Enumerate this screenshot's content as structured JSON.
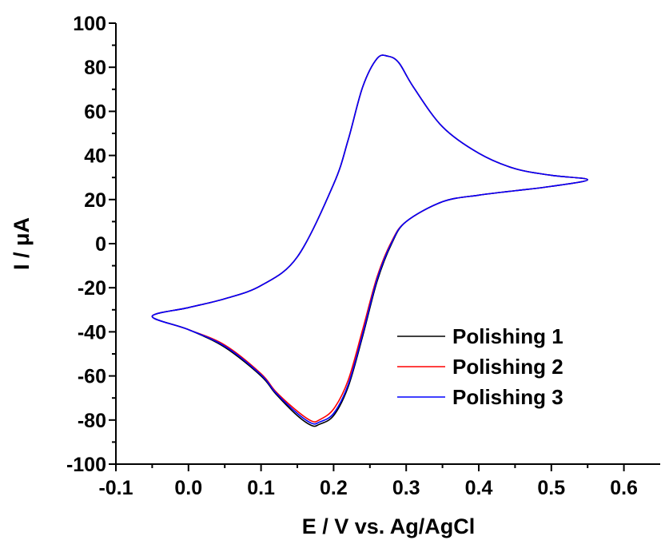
{
  "chart_data": {
    "type": "line",
    "xlabel": "E / V vs. Ag/AgCl",
    "ylabel_prefix": "I / ",
    "ylabel_unit": "μA",
    "xlim": [
      -0.1,
      0.65
    ],
    "ylim": [
      -100,
      100
    ],
    "x_ticks": [
      "-0.1",
      "0.0",
      "0.1",
      "0.2",
      "0.3",
      "0.4",
      "0.5",
      "0.6"
    ],
    "y_ticks": [
      "-100",
      "-80",
      "-60",
      "-40",
      "-20",
      "0",
      "20",
      "40",
      "60",
      "80",
      "100"
    ],
    "grid": false,
    "legend_position": "bottom-right",
    "series": [
      {
        "name": "Polishing 1",
        "color": "#000000",
        "x": [
          -0.05,
          0.0,
          0.05,
          0.1,
          0.15,
          0.2,
          0.22,
          0.24,
          0.26,
          0.275,
          0.29,
          0.31,
          0.35,
          0.4,
          0.45,
          0.5,
          0.55,
          0.5,
          0.45,
          0.4,
          0.35,
          0.3,
          0.28,
          0.26,
          0.24,
          0.22,
          0.2,
          0.18,
          0.17,
          0.15,
          0.12,
          0.1,
          0.05,
          0.0,
          -0.05
        ],
        "y": [
          -33,
          -29,
          -25,
          -19,
          -6,
          27,
          47,
          71,
          84,
          85,
          82,
          71,
          53,
          41,
          34,
          31,
          29,
          26,
          24,
          22,
          19,
          10,
          0,
          -17,
          -42,
          -65,
          -78,
          -82,
          -82.5,
          -78,
          -68,
          -60,
          -47,
          -39,
          -33
        ]
      },
      {
        "name": "Polishing 2",
        "color": "#ff0000",
        "x": [
          -0.05,
          0.0,
          0.05,
          0.1,
          0.15,
          0.2,
          0.22,
          0.24,
          0.26,
          0.275,
          0.29,
          0.31,
          0.35,
          0.4,
          0.45,
          0.5,
          0.55,
          0.5,
          0.45,
          0.4,
          0.35,
          0.3,
          0.28,
          0.26,
          0.24,
          0.22,
          0.2,
          0.18,
          0.17,
          0.15,
          0.12,
          0.1,
          0.05,
          0.0,
          -0.05
        ],
        "y": [
          -33,
          -29,
          -25,
          -19,
          -6,
          27,
          47,
          71,
          84,
          85,
          82,
          71,
          53,
          41,
          34,
          31,
          29,
          26,
          24,
          22,
          19,
          10,
          1,
          -15,
          -39,
          -62,
          -75,
          -80,
          -80.5,
          -76,
          -67,
          -59,
          -46,
          -39,
          -33
        ]
      },
      {
        "name": "Polishing 3",
        "color": "#0000ff",
        "x": [
          -0.05,
          0.0,
          0.05,
          0.1,
          0.15,
          0.2,
          0.22,
          0.24,
          0.26,
          0.275,
          0.29,
          0.31,
          0.35,
          0.4,
          0.45,
          0.5,
          0.55,
          0.5,
          0.45,
          0.4,
          0.35,
          0.3,
          0.28,
          0.26,
          0.24,
          0.22,
          0.2,
          0.18,
          0.17,
          0.15,
          0.12,
          0.1,
          0.05,
          0.0,
          -0.05
        ],
        "y": [
          -33,
          -29,
          -25,
          -19,
          -6,
          27,
          47,
          71,
          84,
          85,
          82,
          71,
          53,
          41,
          34,
          31,
          29,
          26,
          24,
          22,
          19,
          10,
          0.5,
          -16,
          -41,
          -64,
          -77,
          -81,
          -81.5,
          -77,
          -67.5,
          -59.5,
          -46.5,
          -39,
          -33
        ]
      }
    ]
  }
}
